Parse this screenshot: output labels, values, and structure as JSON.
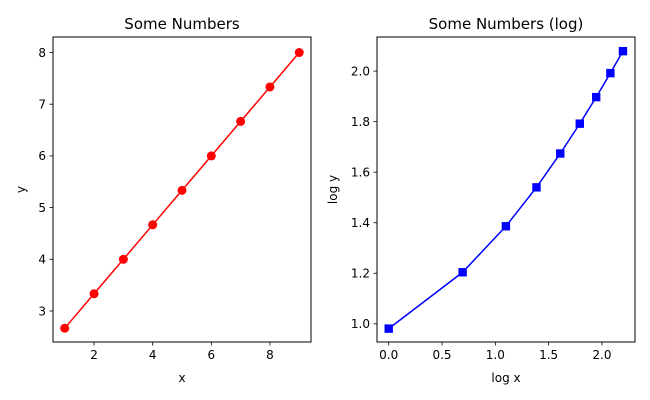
{
  "chart_data": [
    {
      "type": "line",
      "title": "Some Numbers",
      "xlabel": "x",
      "ylabel": "y",
      "xlim": [
        0.6,
        9.4
      ],
      "ylim": [
        2.4,
        8.3
      ],
      "xticks": [
        2,
        4,
        6,
        8
      ],
      "yticks": [
        3,
        4,
        5,
        6,
        7,
        8
      ],
      "xtick_labels": [
        "2",
        "4",
        "6",
        "8"
      ],
      "ytick_labels": [
        "3",
        "4",
        "5",
        "6",
        "7",
        "8"
      ],
      "marker": "circle",
      "color": "#ff0000",
      "grid": false,
      "x": [
        1,
        2,
        3,
        4,
        5,
        6,
        7,
        8,
        9
      ],
      "y": [
        2.667,
        3.333,
        4.0,
        4.667,
        5.333,
        6.0,
        6.667,
        7.333,
        8.0
      ]
    },
    {
      "type": "line",
      "title": "Some Numbers (log)",
      "xlabel": "log x",
      "ylabel": "log y",
      "xlim": [
        -0.11,
        2.31
      ],
      "ylim": [
        0.928,
        2.135
      ],
      "xticks": [
        0.0,
        0.5,
        1.0,
        1.5,
        2.0
      ],
      "yticks": [
        1.0,
        1.2,
        1.4,
        1.6,
        1.8,
        2.0
      ],
      "xtick_labels": [
        "0.0",
        "0.5",
        "1.0",
        "1.5",
        "2.0"
      ],
      "ytick_labels": [
        "1.0",
        "1.2",
        "1.4",
        "1.6",
        "1.8",
        "2.0"
      ],
      "marker": "square",
      "color": "#0000ff",
      "grid": false,
      "x": [
        0.0,
        0.693,
        1.099,
        1.386,
        1.609,
        1.792,
        1.946,
        2.079,
        2.197
      ],
      "y": [
        0.981,
        1.204,
        1.386,
        1.54,
        1.674,
        1.792,
        1.897,
        1.992,
        2.079
      ]
    }
  ]
}
